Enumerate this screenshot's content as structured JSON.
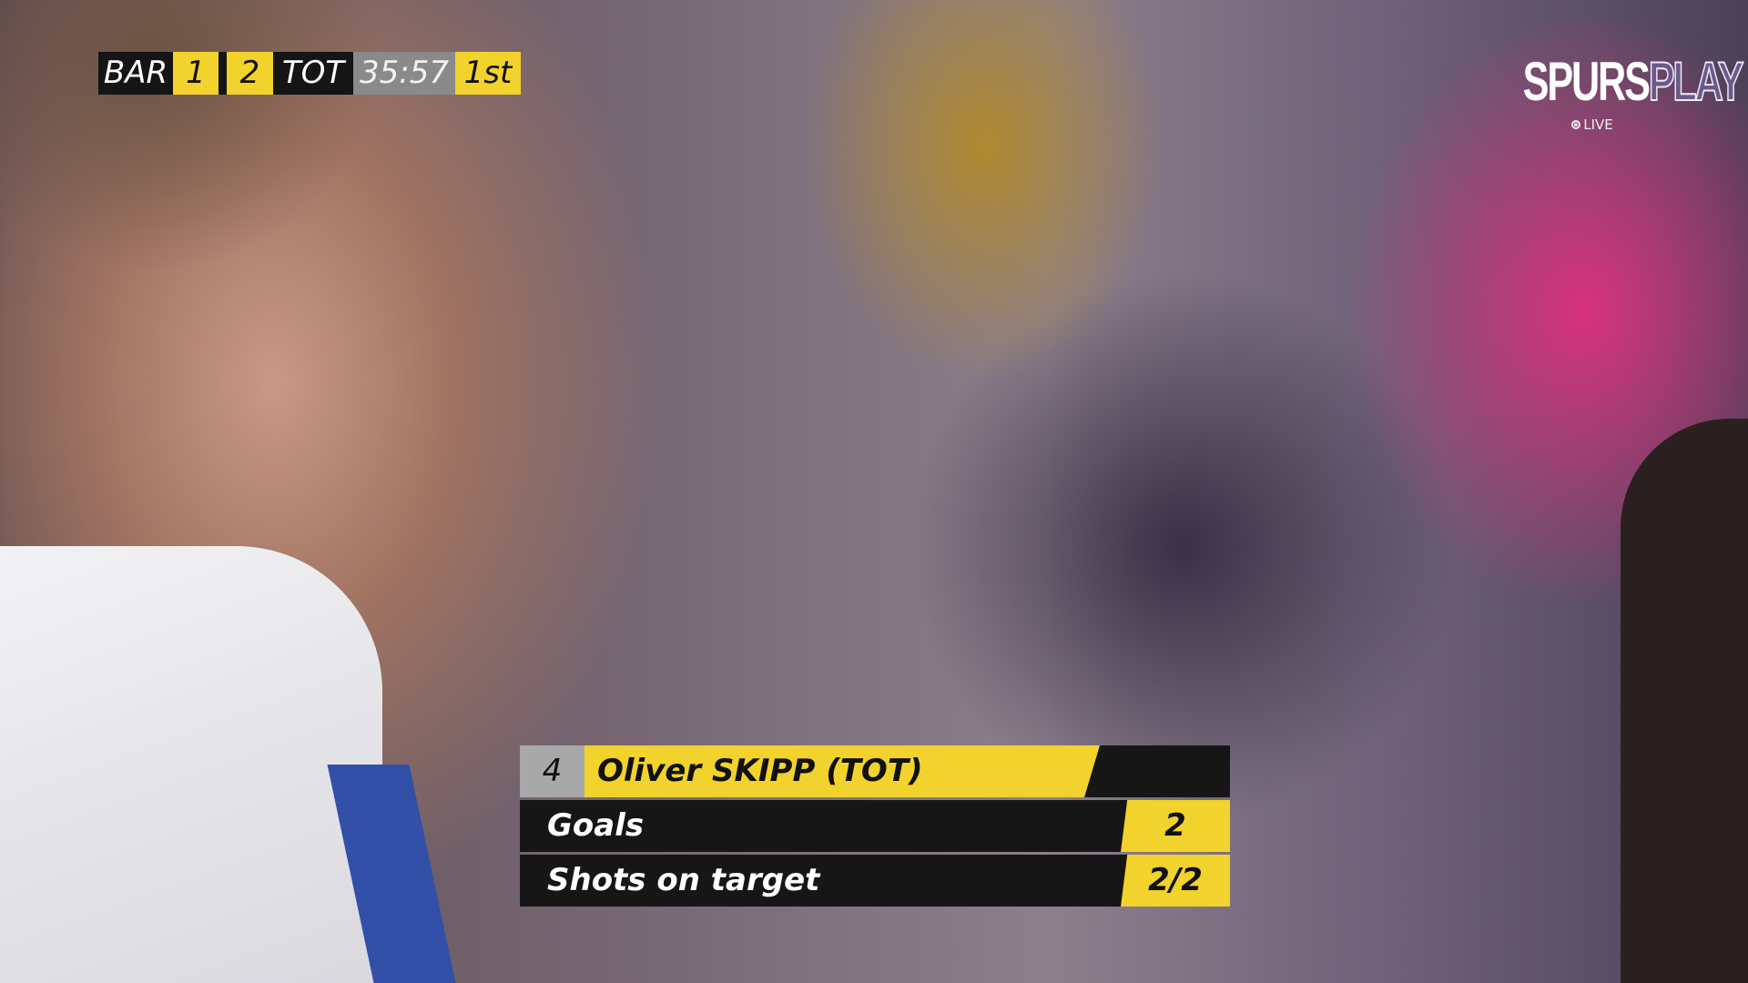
{
  "scoreboard": {
    "home_team": "BAR",
    "home_score": "1",
    "away_score": "2",
    "away_team": "TOT",
    "clock": "35:57",
    "period": "1st"
  },
  "logo": {
    "text_bold": "SPURS",
    "text_outline": "PLAY",
    "live_label": "LIVE"
  },
  "lower_third": {
    "shirt_number": "4",
    "player_name": "Oliver SKIPP (TOT)",
    "stats": [
      {
        "label": "Goals",
        "value": "2"
      },
      {
        "label": "Shots on target",
        "value": "2/2"
      }
    ]
  },
  "colors": {
    "accent_yellow": "#f2d22c",
    "panel_black": "#161616",
    "clock_gray": "#8a8a8a"
  }
}
